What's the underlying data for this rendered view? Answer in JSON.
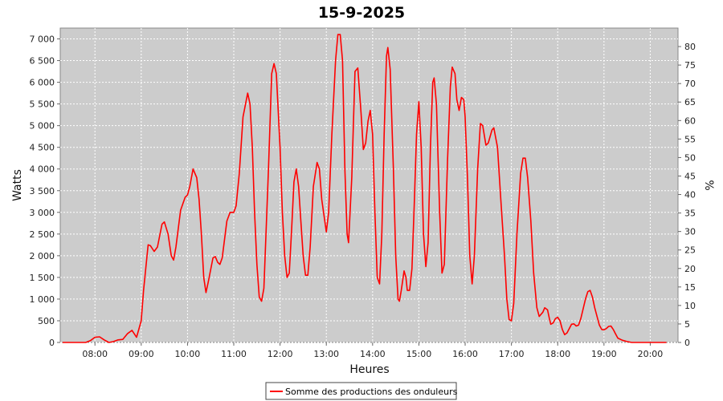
{
  "chart_data": {
    "type": "line",
    "title": "15-9-2025",
    "xlabel": "Heures",
    "ylabel": "Watts",
    "y2label": "%",
    "xlim": [
      7.25,
      20.6
    ],
    "ylim": [
      0,
      7250
    ],
    "y2lim": [
      0,
      85
    ],
    "x_ticks": [
      {
        "value": 8,
        "label": "08:00"
      },
      {
        "value": 9,
        "label": "09:00"
      },
      {
        "value": 10,
        "label": "10:00"
      },
      {
        "value": 11,
        "label": "11:00"
      },
      {
        "value": 12,
        "label": "12:00"
      },
      {
        "value": 13,
        "label": "13:00"
      },
      {
        "value": 14,
        "label": "14:00"
      },
      {
        "value": 15,
        "label": "15:00"
      },
      {
        "value": 16,
        "label": "16:00"
      },
      {
        "value": 17,
        "label": "17:00"
      },
      {
        "value": 18,
        "label": "18:00"
      },
      {
        "value": 19,
        "label": "19:00"
      },
      {
        "value": 20,
        "label": "20:00"
      }
    ],
    "y_ticks": [
      {
        "value": 0,
        "label": "0"
      },
      {
        "value": 500,
        "label": "500"
      },
      {
        "value": 1000,
        "label": "1 000"
      },
      {
        "value": 1500,
        "label": "1 500"
      },
      {
        "value": 2000,
        "label": "2 000"
      },
      {
        "value": 2500,
        "label": "2 500"
      },
      {
        "value": 3000,
        "label": "3 000"
      },
      {
        "value": 3500,
        "label": "3 500"
      },
      {
        "value": 4000,
        "label": "4 000"
      },
      {
        "value": 4500,
        "label": "4 500"
      },
      {
        "value": 5000,
        "label": "5 000"
      },
      {
        "value": 5500,
        "label": "5 500"
      },
      {
        "value": 6000,
        "label": "6 000"
      },
      {
        "value": 6500,
        "label": "6 500"
      },
      {
        "value": 7000,
        "label": "7 000"
      }
    ],
    "y2_ticks": [
      {
        "value": 0,
        "label": "0"
      },
      {
        "value": 5,
        "label": "5"
      },
      {
        "value": 10,
        "label": "10"
      },
      {
        "value": 15,
        "label": "15"
      },
      {
        "value": 20,
        "label": "20"
      },
      {
        "value": 25,
        "label": "25"
      },
      {
        "value": 30,
        "label": "30"
      },
      {
        "value": 35,
        "label": "35"
      },
      {
        "value": 40,
        "label": "40"
      },
      {
        "value": 45,
        "label": "45"
      },
      {
        "value": 50,
        "label": "50"
      },
      {
        "value": 55,
        "label": "55"
      },
      {
        "value": 60,
        "label": "60"
      },
      {
        "value": 65,
        "label": "65"
      },
      {
        "value": 70,
        "label": "70"
      },
      {
        "value": 75,
        "label": "75"
      },
      {
        "value": 80,
        "label": "80"
      }
    ],
    "grid": true,
    "legend_position": "bottom",
    "series": [
      {
        "name": "Somme des productions des onduleurs",
        "color": "#ff0000",
        "points": [
          [
            7.3,
            0
          ],
          [
            7.8,
            0
          ],
          [
            7.9,
            40
          ],
          [
            8.0,
            120
          ],
          [
            8.1,
            130
          ],
          [
            8.2,
            60
          ],
          [
            8.3,
            0
          ],
          [
            8.4,
            20
          ],
          [
            8.5,
            60
          ],
          [
            8.6,
            70
          ],
          [
            8.7,
            200
          ],
          [
            8.8,
            280
          ],
          [
            8.9,
            120
          ],
          [
            9.0,
            500
          ],
          [
            9.05,
            1200
          ],
          [
            9.15,
            2250
          ],
          [
            9.2,
            2230
          ],
          [
            9.28,
            2100
          ],
          [
            9.35,
            2200
          ],
          [
            9.45,
            2730
          ],
          [
            9.5,
            2780
          ],
          [
            9.58,
            2500
          ],
          [
            9.65,
            2000
          ],
          [
            9.7,
            1900
          ],
          [
            9.75,
            2200
          ],
          [
            9.85,
            3050
          ],
          [
            9.95,
            3350
          ],
          [
            10.0,
            3400
          ],
          [
            10.05,
            3600
          ],
          [
            10.12,
            4000
          ],
          [
            10.2,
            3800
          ],
          [
            10.25,
            3300
          ],
          [
            10.3,
            2500
          ],
          [
            10.35,
            1500
          ],
          [
            10.4,
            1150
          ],
          [
            10.45,
            1400
          ],
          [
            10.55,
            1950
          ],
          [
            10.6,
            1980
          ],
          [
            10.65,
            1850
          ],
          [
            10.7,
            1800
          ],
          [
            10.75,
            1950
          ],
          [
            10.85,
            2800
          ],
          [
            10.92,
            3000
          ],
          [
            11.0,
            3000
          ],
          [
            11.05,
            3150
          ],
          [
            11.12,
            3900
          ],
          [
            11.2,
            5200
          ],
          [
            11.3,
            5750
          ],
          [
            11.35,
            5500
          ],
          [
            11.4,
            4500
          ],
          [
            11.45,
            3000
          ],
          [
            11.5,
            1800
          ],
          [
            11.55,
            1050
          ],
          [
            11.6,
            950
          ],
          [
            11.65,
            1250
          ],
          [
            11.75,
            4000
          ],
          [
            11.82,
            6200
          ],
          [
            11.87,
            6430
          ],
          [
            11.92,
            6200
          ],
          [
            12.0,
            4500
          ],
          [
            12.05,
            3000
          ],
          [
            12.1,
            2000
          ],
          [
            12.15,
            1500
          ],
          [
            12.2,
            1600
          ],
          [
            12.25,
            2600
          ],
          [
            12.3,
            3700
          ],
          [
            12.35,
            4000
          ],
          [
            12.4,
            3600
          ],
          [
            12.45,
            2800
          ],
          [
            12.5,
            2000
          ],
          [
            12.55,
            1550
          ],
          [
            12.6,
            1550
          ],
          [
            12.65,
            2200
          ],
          [
            12.72,
            3600
          ],
          [
            12.8,
            4150
          ],
          [
            12.85,
            4000
          ],
          [
            12.9,
            3300
          ],
          [
            13.0,
            2550
          ],
          [
            13.05,
            3000
          ],
          [
            13.12,
            4800
          ],
          [
            13.2,
            6500
          ],
          [
            13.25,
            7100
          ],
          [
            13.3,
            7100
          ],
          [
            13.35,
            6500
          ],
          [
            13.4,
            4000
          ],
          [
            13.45,
            2500
          ],
          [
            13.48,
            2300
          ],
          [
            13.55,
            3800
          ],
          [
            13.62,
            6250
          ],
          [
            13.68,
            6330
          ],
          [
            13.75,
            5300
          ],
          [
            13.8,
            4450
          ],
          [
            13.85,
            4600
          ],
          [
            13.9,
            5100
          ],
          [
            13.95,
            5350
          ],
          [
            14.0,
            4800
          ],
          [
            14.05,
            3000
          ],
          [
            14.1,
            1500
          ],
          [
            14.15,
            1350
          ],
          [
            14.2,
            2500
          ],
          [
            14.25,
            4800
          ],
          [
            14.3,
            6600
          ],
          [
            14.33,
            6800
          ],
          [
            14.38,
            6300
          ],
          [
            14.45,
            4000
          ],
          [
            14.5,
            2000
          ],
          [
            14.55,
            1000
          ],
          [
            14.58,
            950
          ],
          [
            14.62,
            1200
          ],
          [
            14.68,
            1650
          ],
          [
            14.72,
            1500
          ],
          [
            14.75,
            1200
          ],
          [
            14.8,
            1200
          ],
          [
            14.85,
            1700
          ],
          [
            14.9,
            3200
          ],
          [
            14.95,
            4800
          ],
          [
            15.0,
            5550
          ],
          [
            15.05,
            4500
          ],
          [
            15.1,
            2500
          ],
          [
            15.15,
            1750
          ],
          [
            15.2,
            2300
          ],
          [
            15.25,
            4500
          ],
          [
            15.3,
            6000
          ],
          [
            15.33,
            6100
          ],
          [
            15.38,
            5500
          ],
          [
            15.45,
            3000
          ],
          [
            15.5,
            1600
          ],
          [
            15.55,
            1800
          ],
          [
            15.62,
            4200
          ],
          [
            15.68,
            5900
          ],
          [
            15.72,
            6350
          ],
          [
            15.78,
            6200
          ],
          [
            15.82,
            5600
          ],
          [
            15.87,
            5350
          ],
          [
            15.92,
            5650
          ],
          [
            15.97,
            5600
          ],
          [
            16.0,
            5200
          ],
          [
            16.05,
            3800
          ],
          [
            16.1,
            2000
          ],
          [
            16.15,
            1350
          ],
          [
            16.2,
            2000
          ],
          [
            16.27,
            4000
          ],
          [
            16.33,
            5050
          ],
          [
            16.38,
            5000
          ],
          [
            16.45,
            4550
          ],
          [
            16.5,
            4600
          ],
          [
            16.58,
            4900
          ],
          [
            16.62,
            4950
          ],
          [
            16.7,
            4500
          ],
          [
            16.77,
            3300
          ],
          [
            16.85,
            2000
          ],
          [
            16.9,
            1000
          ],
          [
            16.95,
            530
          ],
          [
            17.0,
            500
          ],
          [
            17.05,
            900
          ],
          [
            17.12,
            2500
          ],
          [
            17.2,
            3900
          ],
          [
            17.25,
            4250
          ],
          [
            17.3,
            4250
          ],
          [
            17.35,
            3800
          ],
          [
            17.42,
            2800
          ],
          [
            17.48,
            1600
          ],
          [
            17.55,
            800
          ],
          [
            17.6,
            600
          ],
          [
            17.68,
            700
          ],
          [
            17.72,
            800
          ],
          [
            17.78,
            750
          ],
          [
            17.82,
            550
          ],
          [
            17.85,
            420
          ],
          [
            17.9,
            450
          ],
          [
            17.95,
            550
          ],
          [
            18.0,
            580
          ],
          [
            18.05,
            500
          ],
          [
            18.1,
            300
          ],
          [
            18.15,
            180
          ],
          [
            18.2,
            220
          ],
          [
            18.3,
            420
          ],
          [
            18.35,
            430
          ],
          [
            18.4,
            380
          ],
          [
            18.45,
            400
          ],
          [
            18.5,
            550
          ],
          [
            18.6,
            1000
          ],
          [
            18.65,
            1170
          ],
          [
            18.7,
            1200
          ],
          [
            18.75,
            1050
          ],
          [
            18.8,
            800
          ],
          [
            18.85,
            600
          ],
          [
            18.9,
            400
          ],
          [
            18.95,
            300
          ],
          [
            19.0,
            290
          ],
          [
            19.05,
            320
          ],
          [
            19.1,
            370
          ],
          [
            19.15,
            380
          ],
          [
            19.2,
            300
          ],
          [
            19.25,
            200
          ],
          [
            19.3,
            100
          ],
          [
            19.4,
            50
          ],
          [
            19.5,
            20
          ],
          [
            19.6,
            0
          ],
          [
            20.0,
            0
          ],
          [
            20.35,
            0
          ]
        ]
      }
    ]
  }
}
